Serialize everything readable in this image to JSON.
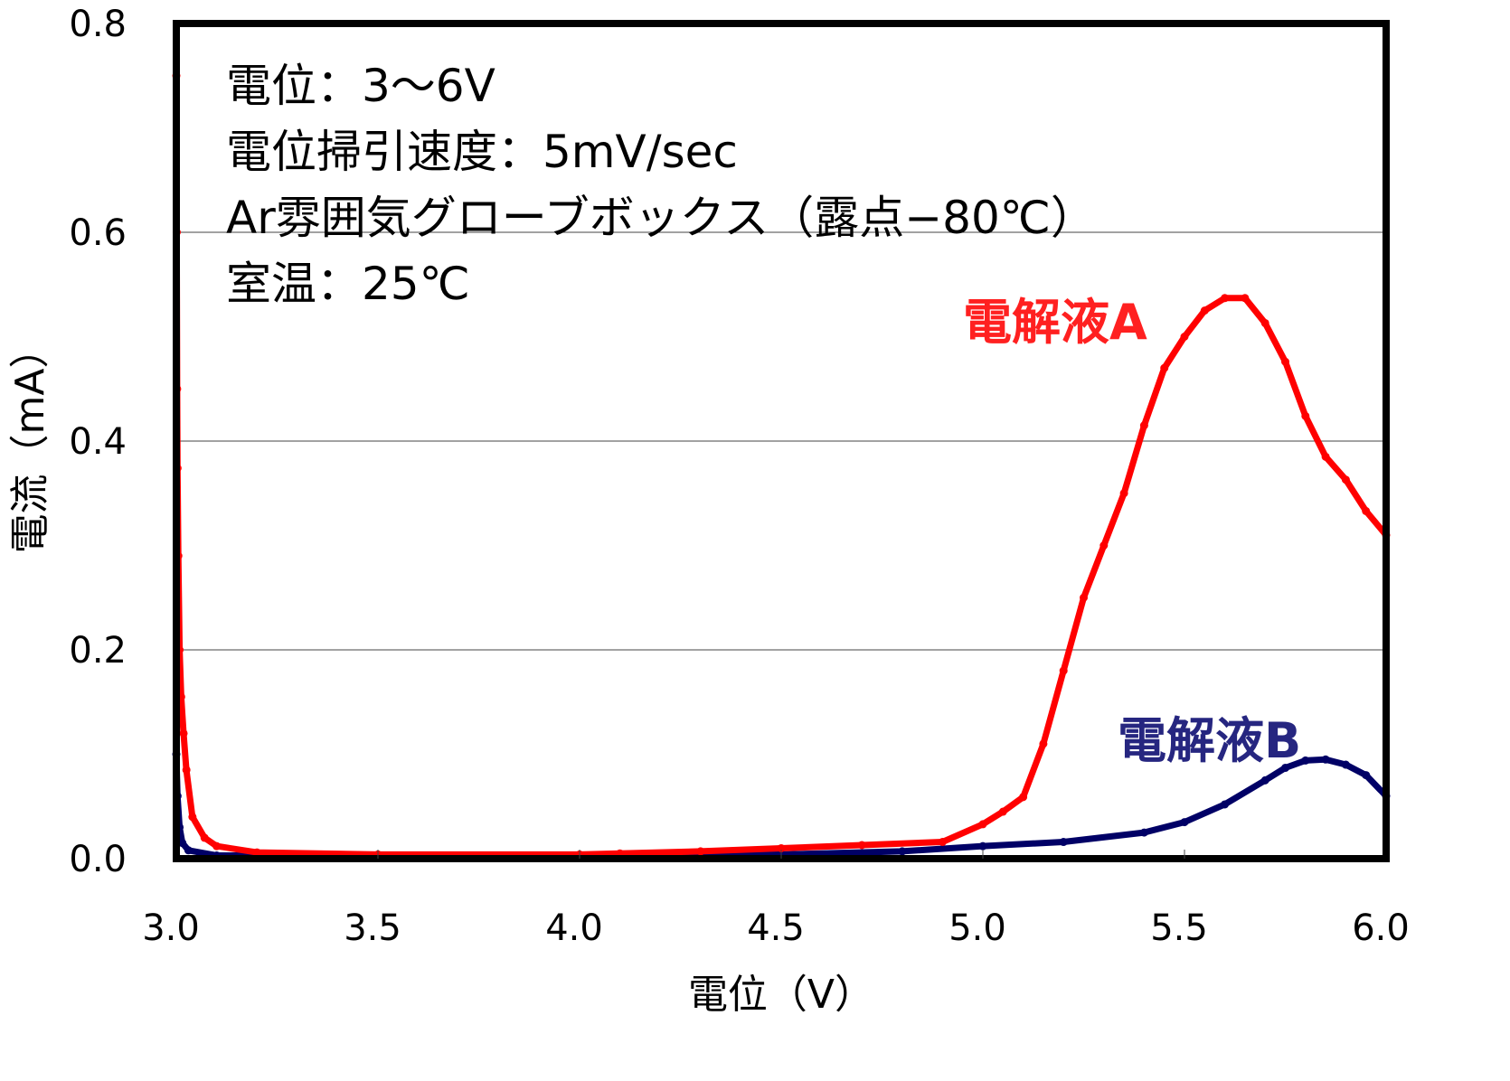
{
  "chart_data": {
    "type": "scatter",
    "xlabel": "電位（V）",
    "ylabel": "電流（mA）",
    "xlim": [
      3.0,
      6.0
    ],
    "ylim": [
      0.0,
      0.8
    ],
    "xticks": [
      "3.0",
      "3.5",
      "4.0",
      "4.5",
      "5.0",
      "5.5",
      "6.0"
    ],
    "yticks": [
      "0.0",
      "0.2",
      "0.4",
      "0.6",
      "0.8"
    ],
    "grid": "horizontal",
    "annotations": [
      "電位：3〜6V",
      "電位掃引速度：5mV/sec",
      "Ar雰囲気グローブボックス（露点−80℃）",
      "室温：25℃"
    ],
    "series": [
      {
        "name": "電解液A",
        "color": "#ff0000",
        "x": [
          3.0,
          3.001,
          3.002,
          3.003,
          3.005,
          3.008,
          3.012,
          3.018,
          3.025,
          3.04,
          3.07,
          3.1,
          3.2,
          3.5,
          4.0,
          4.1,
          4.3,
          4.5,
          4.7,
          4.9,
          5.0,
          5.05,
          5.1,
          5.15,
          5.2,
          5.25,
          5.3,
          5.35,
          5.4,
          5.45,
          5.5,
          5.55,
          5.6,
          5.65,
          5.7,
          5.75,
          5.8,
          5.85,
          5.9,
          5.95,
          6.0
        ],
        "y": [
          0.75,
          0.6,
          0.45,
          0.374,
          0.29,
          0.2,
          0.155,
          0.12,
          0.085,
          0.04,
          0.02,
          0.012,
          0.006,
          0.004,
          0.004,
          0.005,
          0.007,
          0.01,
          0.013,
          0.016,
          0.033,
          0.045,
          0.059,
          0.11,
          0.18,
          0.25,
          0.3,
          0.35,
          0.415,
          0.47,
          0.5,
          0.525,
          0.537,
          0.537,
          0.513,
          0.476,
          0.424,
          0.385,
          0.363,
          0.333,
          0.31
        ]
      },
      {
        "name": "電解液B",
        "color": "#000066",
        "x": [
          3.0,
          3.003,
          3.008,
          3.015,
          3.03,
          3.1,
          3.5,
          4.0,
          4.5,
          4.8,
          5.0,
          5.2,
          5.4,
          5.5,
          5.6,
          5.7,
          5.75,
          5.8,
          5.85,
          5.9,
          5.95,
          6.0
        ],
        "y": [
          0.1,
          0.06,
          0.03,
          0.015,
          0.008,
          0.003,
          0.003,
          0.003,
          0.004,
          0.007,
          0.012,
          0.016,
          0.025,
          0.035,
          0.052,
          0.075,
          0.087,
          0.094,
          0.095,
          0.09,
          0.08,
          0.06
        ]
      }
    ]
  }
}
